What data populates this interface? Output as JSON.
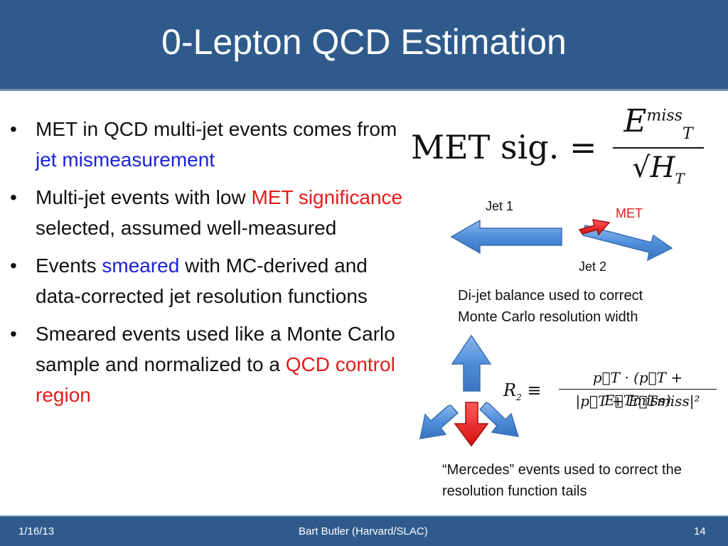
{
  "slide": {
    "title": "0-Lepton QCD Estimation"
  },
  "bullets": [
    {
      "parts": [
        "MET in QCD multi-jet events comes from ",
        "jet mismeasurement",
        ""
      ]
    },
    {
      "parts": [
        "Multi-jet events with low ",
        "MET significance",
        " selected, assumed well-measured"
      ]
    },
    {
      "parts": [
        "Events ",
        "smeared",
        " with MC-derived and data-corrected jet resolution functions"
      ]
    },
    {
      "parts": [
        "Smeared events used like a Monte Carlo sample and normalized to a ",
        "QCD control region",
        ""
      ]
    }
  ],
  "bullet_glyph": "•",
  "formula_met_sig": {
    "lhs": "MET sig. =",
    "num_main": "E",
    "num_sup": "miss",
    "num_sub": "T",
    "den_root": "√",
    "den_main": "H",
    "den_sub": "T"
  },
  "formula_r2": {
    "lhs_main": "R",
    "lhs_sub": "2",
    "equiv": "≡",
    "numerator": "p⃗T · (p⃗T + E⃗Tmiss)",
    "denominator": "|p⃗T + E⃗Tmiss|²"
  },
  "dijet_labels": {
    "jet1": "Jet 1",
    "met": "MET",
    "jet2": "Jet 2"
  },
  "captions": {
    "dijet": "Di-jet balance used to correct Monte Carlo resolution width",
    "mercedes": "“Mercedes” events used to correct the resolution function tails"
  },
  "colors": {
    "title_bar": "#2f5b8c",
    "blue_highlight": "#1a22d8",
    "red_highlight": "#e41b1b",
    "arrow_blue": "#4f8edb",
    "arrow_red": "#e41b1b"
  },
  "footer": {
    "date": "1/16/13",
    "author": "Bart Butler (Harvard/SLAC)",
    "page": "14"
  }
}
